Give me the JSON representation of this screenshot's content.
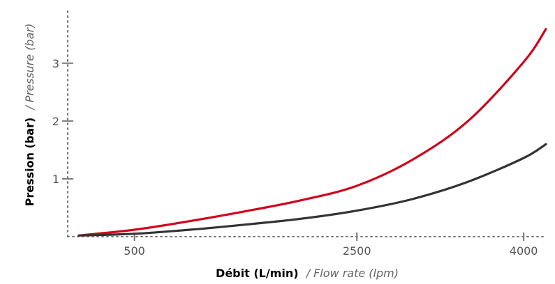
{
  "chart_data": {
    "type": "line",
    "xlabel": {
      "main": "Débit (L/min)",
      "sub": "/ Flow rate (lpm)"
    },
    "ylabel": {
      "main": "Pression (bar)",
      "sub": "/ Pressure (bar)"
    },
    "x_ticks": [
      {
        "value": 500,
        "label": "500"
      },
      {
        "value": 2500,
        "label": "2500"
      },
      {
        "value": 4000,
        "label": "4000"
      }
    ],
    "y_ticks": [
      {
        "value": 1,
        "label": "1"
      },
      {
        "value": 2,
        "label": "2"
      },
      {
        "value": 3,
        "label": "3"
      }
    ],
    "xlim": [
      -100,
      4200
    ],
    "ylim": [
      0,
      3.9
    ],
    "grid": false,
    "series": [
      {
        "color": "#d0021b",
        "x": [
          0,
          500,
          1000,
          1500,
          2000,
          2500,
          3000,
          3500,
          4000,
          4200
        ],
        "y": [
          0.02,
          0.12,
          0.27,
          0.44,
          0.63,
          0.88,
          1.33,
          2.0,
          3.02,
          3.59
        ]
      },
      {
        "color": "#333333",
        "x": [
          0,
          500,
          1000,
          1500,
          2000,
          2500,
          3000,
          3500,
          4000,
          4200
        ],
        "y": [
          0.02,
          0.05,
          0.12,
          0.21,
          0.31,
          0.45,
          0.65,
          0.95,
          1.36,
          1.6
        ]
      }
    ]
  }
}
